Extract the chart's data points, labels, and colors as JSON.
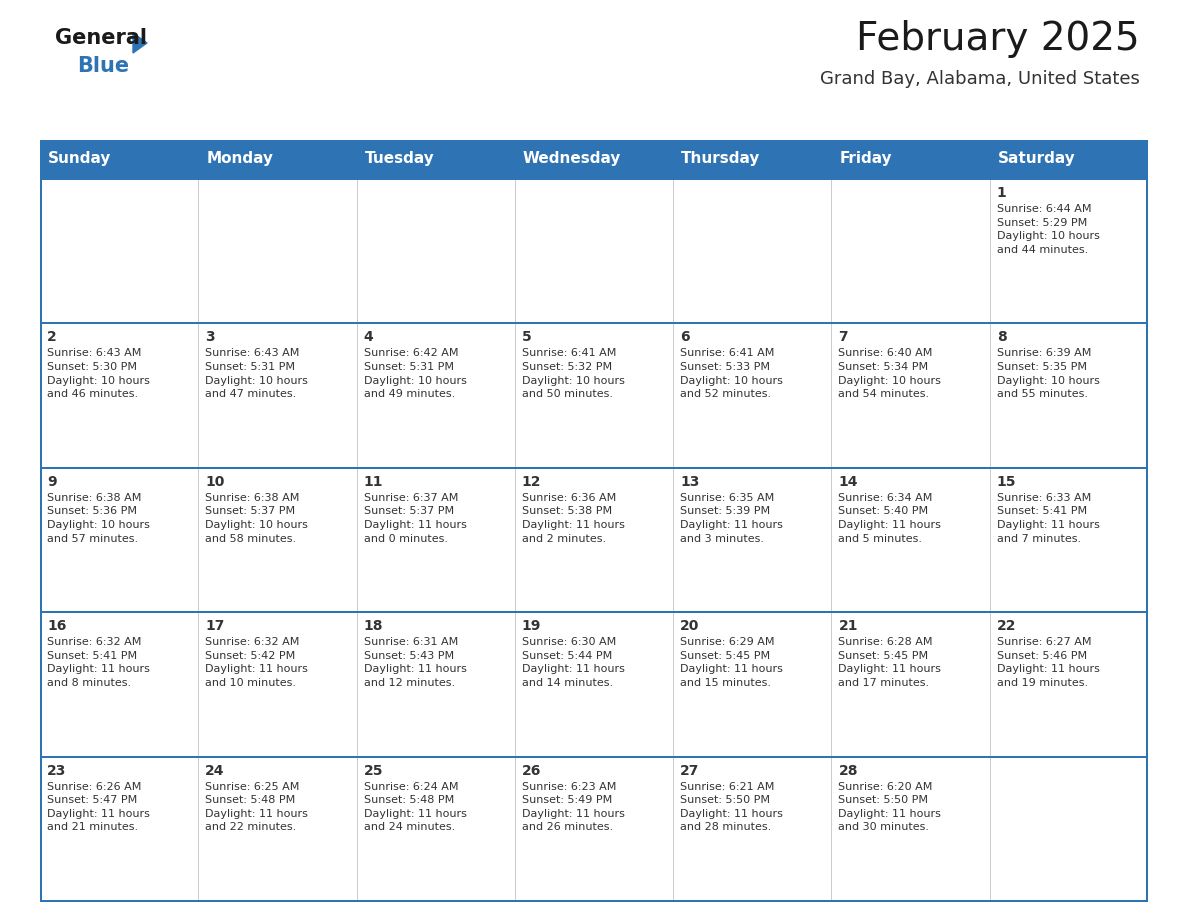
{
  "title": "February 2025",
  "subtitle": "Grand Bay, Alabama, United States",
  "header_color": "#2E74B5",
  "header_text_color": "#FFFFFF",
  "cell_bg_color": "#FFFFFF",
  "border_color": "#2E74B5",
  "row_border_color": "#2E74B5",
  "text_color": "#333333",
  "days_of_week": [
    "Sunday",
    "Monday",
    "Tuesday",
    "Wednesday",
    "Thursday",
    "Friday",
    "Saturday"
  ],
  "weeks": [
    [
      {
        "day": null,
        "info": null
      },
      {
        "day": null,
        "info": null
      },
      {
        "day": null,
        "info": null
      },
      {
        "day": null,
        "info": null
      },
      {
        "day": null,
        "info": null
      },
      {
        "day": null,
        "info": null
      },
      {
        "day": 1,
        "info": "Sunrise: 6:44 AM\nSunset: 5:29 PM\nDaylight: 10 hours\nand 44 minutes."
      }
    ],
    [
      {
        "day": 2,
        "info": "Sunrise: 6:43 AM\nSunset: 5:30 PM\nDaylight: 10 hours\nand 46 minutes."
      },
      {
        "day": 3,
        "info": "Sunrise: 6:43 AM\nSunset: 5:31 PM\nDaylight: 10 hours\nand 47 minutes."
      },
      {
        "day": 4,
        "info": "Sunrise: 6:42 AM\nSunset: 5:31 PM\nDaylight: 10 hours\nand 49 minutes."
      },
      {
        "day": 5,
        "info": "Sunrise: 6:41 AM\nSunset: 5:32 PM\nDaylight: 10 hours\nand 50 minutes."
      },
      {
        "day": 6,
        "info": "Sunrise: 6:41 AM\nSunset: 5:33 PM\nDaylight: 10 hours\nand 52 minutes."
      },
      {
        "day": 7,
        "info": "Sunrise: 6:40 AM\nSunset: 5:34 PM\nDaylight: 10 hours\nand 54 minutes."
      },
      {
        "day": 8,
        "info": "Sunrise: 6:39 AM\nSunset: 5:35 PM\nDaylight: 10 hours\nand 55 minutes."
      }
    ],
    [
      {
        "day": 9,
        "info": "Sunrise: 6:38 AM\nSunset: 5:36 PM\nDaylight: 10 hours\nand 57 minutes."
      },
      {
        "day": 10,
        "info": "Sunrise: 6:38 AM\nSunset: 5:37 PM\nDaylight: 10 hours\nand 58 minutes."
      },
      {
        "day": 11,
        "info": "Sunrise: 6:37 AM\nSunset: 5:37 PM\nDaylight: 11 hours\nand 0 minutes."
      },
      {
        "day": 12,
        "info": "Sunrise: 6:36 AM\nSunset: 5:38 PM\nDaylight: 11 hours\nand 2 minutes."
      },
      {
        "day": 13,
        "info": "Sunrise: 6:35 AM\nSunset: 5:39 PM\nDaylight: 11 hours\nand 3 minutes."
      },
      {
        "day": 14,
        "info": "Sunrise: 6:34 AM\nSunset: 5:40 PM\nDaylight: 11 hours\nand 5 minutes."
      },
      {
        "day": 15,
        "info": "Sunrise: 6:33 AM\nSunset: 5:41 PM\nDaylight: 11 hours\nand 7 minutes."
      }
    ],
    [
      {
        "day": 16,
        "info": "Sunrise: 6:32 AM\nSunset: 5:41 PM\nDaylight: 11 hours\nand 8 minutes."
      },
      {
        "day": 17,
        "info": "Sunrise: 6:32 AM\nSunset: 5:42 PM\nDaylight: 11 hours\nand 10 minutes."
      },
      {
        "day": 18,
        "info": "Sunrise: 6:31 AM\nSunset: 5:43 PM\nDaylight: 11 hours\nand 12 minutes."
      },
      {
        "day": 19,
        "info": "Sunrise: 6:30 AM\nSunset: 5:44 PM\nDaylight: 11 hours\nand 14 minutes."
      },
      {
        "day": 20,
        "info": "Sunrise: 6:29 AM\nSunset: 5:45 PM\nDaylight: 11 hours\nand 15 minutes."
      },
      {
        "day": 21,
        "info": "Sunrise: 6:28 AM\nSunset: 5:45 PM\nDaylight: 11 hours\nand 17 minutes."
      },
      {
        "day": 22,
        "info": "Sunrise: 6:27 AM\nSunset: 5:46 PM\nDaylight: 11 hours\nand 19 minutes."
      }
    ],
    [
      {
        "day": 23,
        "info": "Sunrise: 6:26 AM\nSunset: 5:47 PM\nDaylight: 11 hours\nand 21 minutes."
      },
      {
        "day": 24,
        "info": "Sunrise: 6:25 AM\nSunset: 5:48 PM\nDaylight: 11 hours\nand 22 minutes."
      },
      {
        "day": 25,
        "info": "Sunrise: 6:24 AM\nSunset: 5:48 PM\nDaylight: 11 hours\nand 24 minutes."
      },
      {
        "day": 26,
        "info": "Sunrise: 6:23 AM\nSunset: 5:49 PM\nDaylight: 11 hours\nand 26 minutes."
      },
      {
        "day": 27,
        "info": "Sunrise: 6:21 AM\nSunset: 5:50 PM\nDaylight: 11 hours\nand 28 minutes."
      },
      {
        "day": 28,
        "info": "Sunrise: 6:20 AM\nSunset: 5:50 PM\nDaylight: 11 hours\nand 30 minutes."
      },
      {
        "day": null,
        "info": null
      }
    ]
  ],
  "logo_general_color": "#1a1a1a",
  "logo_blue_color": "#2E74B5",
  "title_fontsize": 28,
  "subtitle_fontsize": 13,
  "day_header_fontsize": 11,
  "day_num_fontsize": 10,
  "cell_text_fontsize": 8
}
